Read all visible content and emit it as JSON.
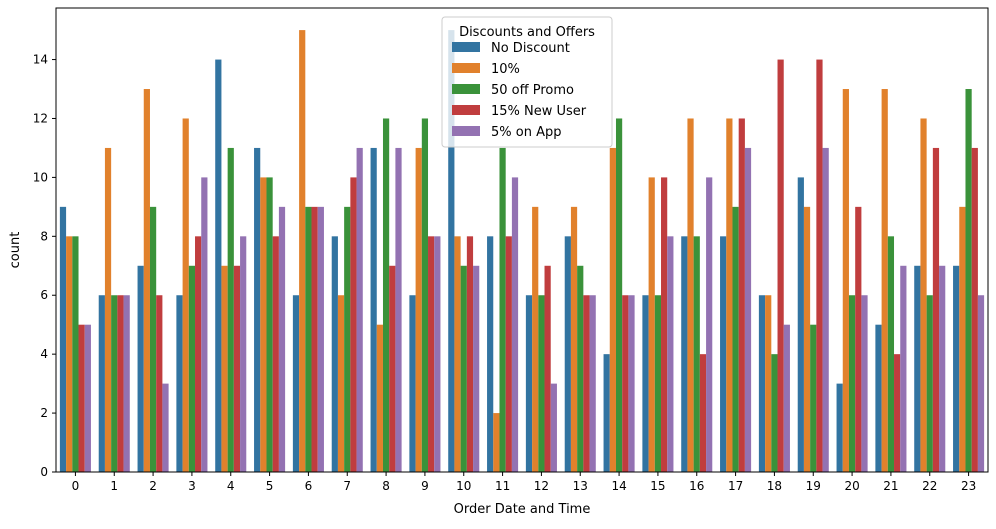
{
  "chart_data": {
    "type": "bar",
    "title": "",
    "xlabel": "Order Date and Time",
    "ylabel": "count",
    "ylim": [
      0,
      15.75
    ],
    "yticks": [
      0,
      2,
      4,
      6,
      8,
      10,
      12,
      14
    ],
    "grid": false,
    "legend": {
      "title": "Discounts and Offers",
      "placement": "top-center"
    },
    "categories": [
      "0",
      "1",
      "2",
      "3",
      "4",
      "5",
      "6",
      "7",
      "8",
      "9",
      "10",
      "11",
      "12",
      "13",
      "14",
      "15",
      "16",
      "17",
      "18",
      "19",
      "20",
      "21",
      "22",
      "23"
    ],
    "series": [
      {
        "name": "No Discount",
        "color": "#3274a1",
        "values": [
          9,
          6,
          7,
          6,
          14,
          11,
          6,
          8,
          11,
          6,
          15,
          8,
          6,
          8,
          4,
          6,
          8,
          8,
          6,
          10,
          3,
          5,
          7,
          7
        ]
      },
      {
        "name": "10%",
        "color": "#e1812c",
        "values": [
          8,
          11,
          13,
          12,
          7,
          10,
          15,
          6,
          5,
          11,
          8,
          2,
          9,
          9,
          11,
          10,
          12,
          12,
          6,
          9,
          13,
          13,
          12,
          9
        ]
      },
      {
        "name": "50 off Promo",
        "color": "#3a923a",
        "values": [
          8,
          6,
          9,
          7,
          11,
          10,
          9,
          9,
          12,
          12,
          7,
          11,
          6,
          7,
          12,
          6,
          8,
          9,
          4,
          5,
          6,
          8,
          6,
          13
        ]
      },
      {
        "name": "15% New User",
        "color": "#c03d3e",
        "values": [
          5,
          6,
          6,
          8,
          7,
          8,
          9,
          10,
          7,
          8,
          8,
          8,
          7,
          6,
          6,
          10,
          4,
          12,
          14,
          14,
          9,
          4,
          11,
          11
        ]
      },
      {
        "name": "5% on App",
        "color": "#9372b2",
        "values": [
          5,
          6,
          3,
          10,
          8,
          9,
          9,
          11,
          11,
          8,
          7,
          10,
          3,
          6,
          6,
          8,
          10,
          11,
          5,
          11,
          6,
          7,
          7,
          6
        ]
      }
    ]
  }
}
